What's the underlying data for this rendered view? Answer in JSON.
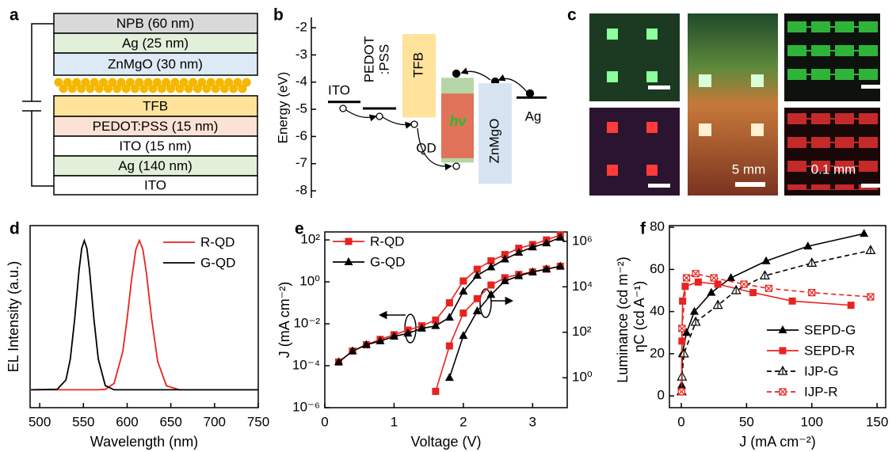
{
  "panel_labels": [
    "a",
    "b",
    "c",
    "d",
    "e",
    "f"
  ],
  "stack": {
    "layers": [
      {
        "label": "NPB (60 nm)",
        "color": "#d9d9d9"
      },
      {
        "label": "Ag (25 nm)",
        "color": "#e2efd9"
      },
      {
        "label": "ZnMgO (30 nm)",
        "color": "#dde9f5"
      },
      {
        "label": "TFB",
        "color": "#ffe39b"
      },
      {
        "label": "PEDOT:PSS (15 nm)",
        "color": "#fbe2d5"
      },
      {
        "label": "ITO (15 nm)",
        "color": "#ffffff"
      },
      {
        "label": "Ag (140 nm)",
        "color": "#e2efd9"
      },
      {
        "label": "ITO",
        "color": "#ffffff"
      }
    ]
  },
  "photos": {
    "scale_labels": [
      "5 mm",
      "0.1 mm"
    ]
  },
  "chart_data": [
    {
      "type": "energy-levels",
      "y_label": "Energy (eV)",
      "ylim": [
        -8.26,
        -1.62
      ],
      "yticks": [
        -2,
        -3,
        -4,
        -5,
        -6,
        -7,
        -8
      ],
      "lines": [
        {
          "name": "ITO",
          "value": -4.73
        },
        {
          "name": [
            "PEDOT",
            ":PSS"
          ],
          "value": -4.97
        },
        {
          "name": "Ag",
          "value": -4.57
        }
      ],
      "bands": [
        {
          "name": "TFB",
          "color": "#ffe39b",
          "values": [
            -2.23,
            -5.3
          ]
        },
        {
          "name": "QD",
          "color": "#b5d6a7",
          "values": [
            -3.84,
            -6.96
          ],
          "inner": {
            "color": "#e0735a",
            "values": [
              -4.42,
              -6.8
            ]
          }
        },
        {
          "name": "ZnMgO",
          "color": "#d6e4f2",
          "values": [
            -4.04,
            -7.74
          ]
        }
      ],
      "annotation": "hν"
    },
    {
      "type": "line",
      "x_label": "Wavelength (nm)",
      "y_label": "EL Intensity (a.u.)",
      "xlim": [
        489,
        750
      ],
      "xticks": [
        500,
        550,
        600,
        650,
        700,
        750
      ],
      "ylim": [
        -0.12,
        1.1
      ],
      "legend": "upper right",
      "x": [
        490,
        520,
        530,
        535,
        540,
        545,
        548,
        551,
        554,
        557,
        562,
        567,
        575,
        585,
        595,
        600,
        605,
        610,
        614,
        618,
        622,
        628,
        635,
        645,
        660,
        690,
        750
      ],
      "series": [
        {
          "name": "R-QD",
          "color": "#e8231f",
          "values": [
            0,
            0,
            0,
            0,
            0,
            0,
            0,
            0,
            0,
            0,
            0,
            0,
            0.003,
            0.042,
            0.255,
            0.477,
            0.736,
            0.941,
            1,
            0.941,
            0.785,
            0.477,
            0.189,
            0.026,
            0,
            0,
            0
          ]
        },
        {
          "name": "G-QD",
          "color": "#000000",
          "values": [
            0,
            0.003,
            0.066,
            0.206,
            0.474,
            0.801,
            0.946,
            1,
            0.946,
            0.801,
            0.474,
            0.206,
            0.028,
            0,
            0,
            0,
            0,
            0,
            0,
            0,
            0,
            0,
            0,
            0,
            0,
            0,
            0
          ]
        }
      ]
    },
    {
      "type": "line",
      "x_label": "Voltage (V)",
      "y_label": "J (mA cm⁻²)",
      "y2_label": "Luminance (cd m⁻²)",
      "xlim": [
        0,
        3.5
      ],
      "xticks": [
        0,
        1,
        2,
        3
      ],
      "ylim": [
        1e-06,
        240
      ],
      "ylog": true,
      "yticks": [
        {
          "value": 1e-06,
          "label": "10⁻⁶"
        },
        {
          "value": 0.0001,
          "label": "10⁻⁴"
        },
        {
          "value": 0.01,
          "label": "10⁻²"
        },
        {
          "value": 1,
          "label": "10⁰"
        },
        {
          "value": 100,
          "label": "10²"
        }
      ],
      "y2lim": [
        0.048,
        2600000
      ],
      "y2log": true,
      "y2ticks": [
        {
          "value": 1,
          "label": "10⁰"
        },
        {
          "value": 100,
          "label": "10²"
        },
        {
          "value": 10000,
          "label": "10⁴"
        },
        {
          "value": 1000000,
          "label": "10⁶"
        }
      ],
      "legend": "upper left",
      "series": [
        {
          "name": "R-QD",
          "color": "#e8231f",
          "marker": "square",
          "x": [
            0.2,
            0.4,
            0.6,
            0.8,
            1.0,
            1.2,
            1.4,
            1.6,
            1.8,
            2.0,
            2.2,
            2.4,
            2.6,
            2.8,
            3.0,
            3.2,
            3.4
          ],
          "values": [
            0.00015,
            0.0005,
            0.001,
            0.0018,
            0.003,
            0.005,
            0.008,
            0.015,
            0.1,
            1.1,
            4,
            10,
            20,
            40,
            60,
            100,
            170
          ]
        },
        {
          "name": "G-QD",
          "color": "#000000",
          "marker": "triangle",
          "x": [
            0.2,
            0.4,
            0.6,
            0.8,
            1.0,
            1.2,
            1.4,
            1.6,
            1.8,
            2.0,
            2.2,
            2.4,
            2.6,
            2.8,
            3.0,
            3.2,
            3.4
          ],
          "values": [
            0.00015,
            0.0005,
            0.001,
            0.0015,
            0.0025,
            0.0035,
            0.006,
            0.008,
            0.02,
            0.35,
            2,
            5,
            12,
            25,
            45,
            70,
            130
          ]
        },
        {
          "color": "#e8231f",
          "marker": "square",
          "axis": "y2",
          "x": [
            1.6,
            1.8,
            2.0,
            2.2,
            2.4,
            2.6,
            2.8,
            3.0,
            3.2,
            3.4
          ],
          "values": [
            0.25,
            25,
            700,
            3000,
            12000,
            25000,
            35000,
            45000,
            60000,
            80000
          ]
        },
        {
          "color": "#000000",
          "marker": "triangle",
          "axis": "y2",
          "x": [
            1.8,
            2.0,
            2.2,
            2.4,
            2.6,
            2.8,
            3.0,
            3.2,
            3.4
          ],
          "values": [
            1,
            70,
            850,
            4500,
            18000,
            30000,
            45000,
            60000,
            80000
          ]
        }
      ]
    },
    {
      "type": "line",
      "x_label": "J (mA cm⁻²)",
      "y_label": "ηC (cd A⁻¹)",
      "xlim": [
        -9.1,
        156.6
      ],
      "xticks": [
        0,
        50,
        100,
        150
      ],
      "ylim": [
        -5.6,
        80.8
      ],
      "yticks": [
        0,
        20,
        40,
        60,
        80
      ],
      "legend": "lower right",
      "series": [
        {
          "name": "SEPD-G",
          "color": "#000000",
          "marker": "triangle",
          "x": [
            0.3,
            0.8,
            4,
            10,
            23,
            38,
            65,
            97,
            140
          ],
          "values": [
            5,
            20,
            30,
            40,
            49,
            56,
            64,
            71,
            77
          ]
        },
        {
          "name": "SEPD-R",
          "color": "#e8231f",
          "marker": "square",
          "x": [
            0.2,
            0.5,
            1,
            3,
            13,
            28,
            55,
            85,
            130
          ],
          "values": [
            2,
            26,
            45,
            52,
            54,
            53,
            49,
            45,
            43
          ]
        },
        {
          "name": "IJP-G",
          "color": "#000000",
          "marker": "open-triangle",
          "dashed": true,
          "x": [
            0.2,
            0.5,
            2,
            11,
            28,
            42,
            64,
            100,
            145
          ],
          "values": [
            2,
            9,
            20,
            35,
            43,
            50,
            57,
            63,
            69
          ]
        },
        {
          "name": "IJP-R",
          "color": "#e8231f",
          "marker": "crossed-square",
          "dashed": true,
          "x": [
            0.2,
            0.5,
            4,
            11,
            25,
            48,
            67,
            100,
            145
          ],
          "values": [
            2,
            32,
            56,
            58,
            56,
            53,
            51,
            49,
            47
          ]
        }
      ]
    }
  ]
}
